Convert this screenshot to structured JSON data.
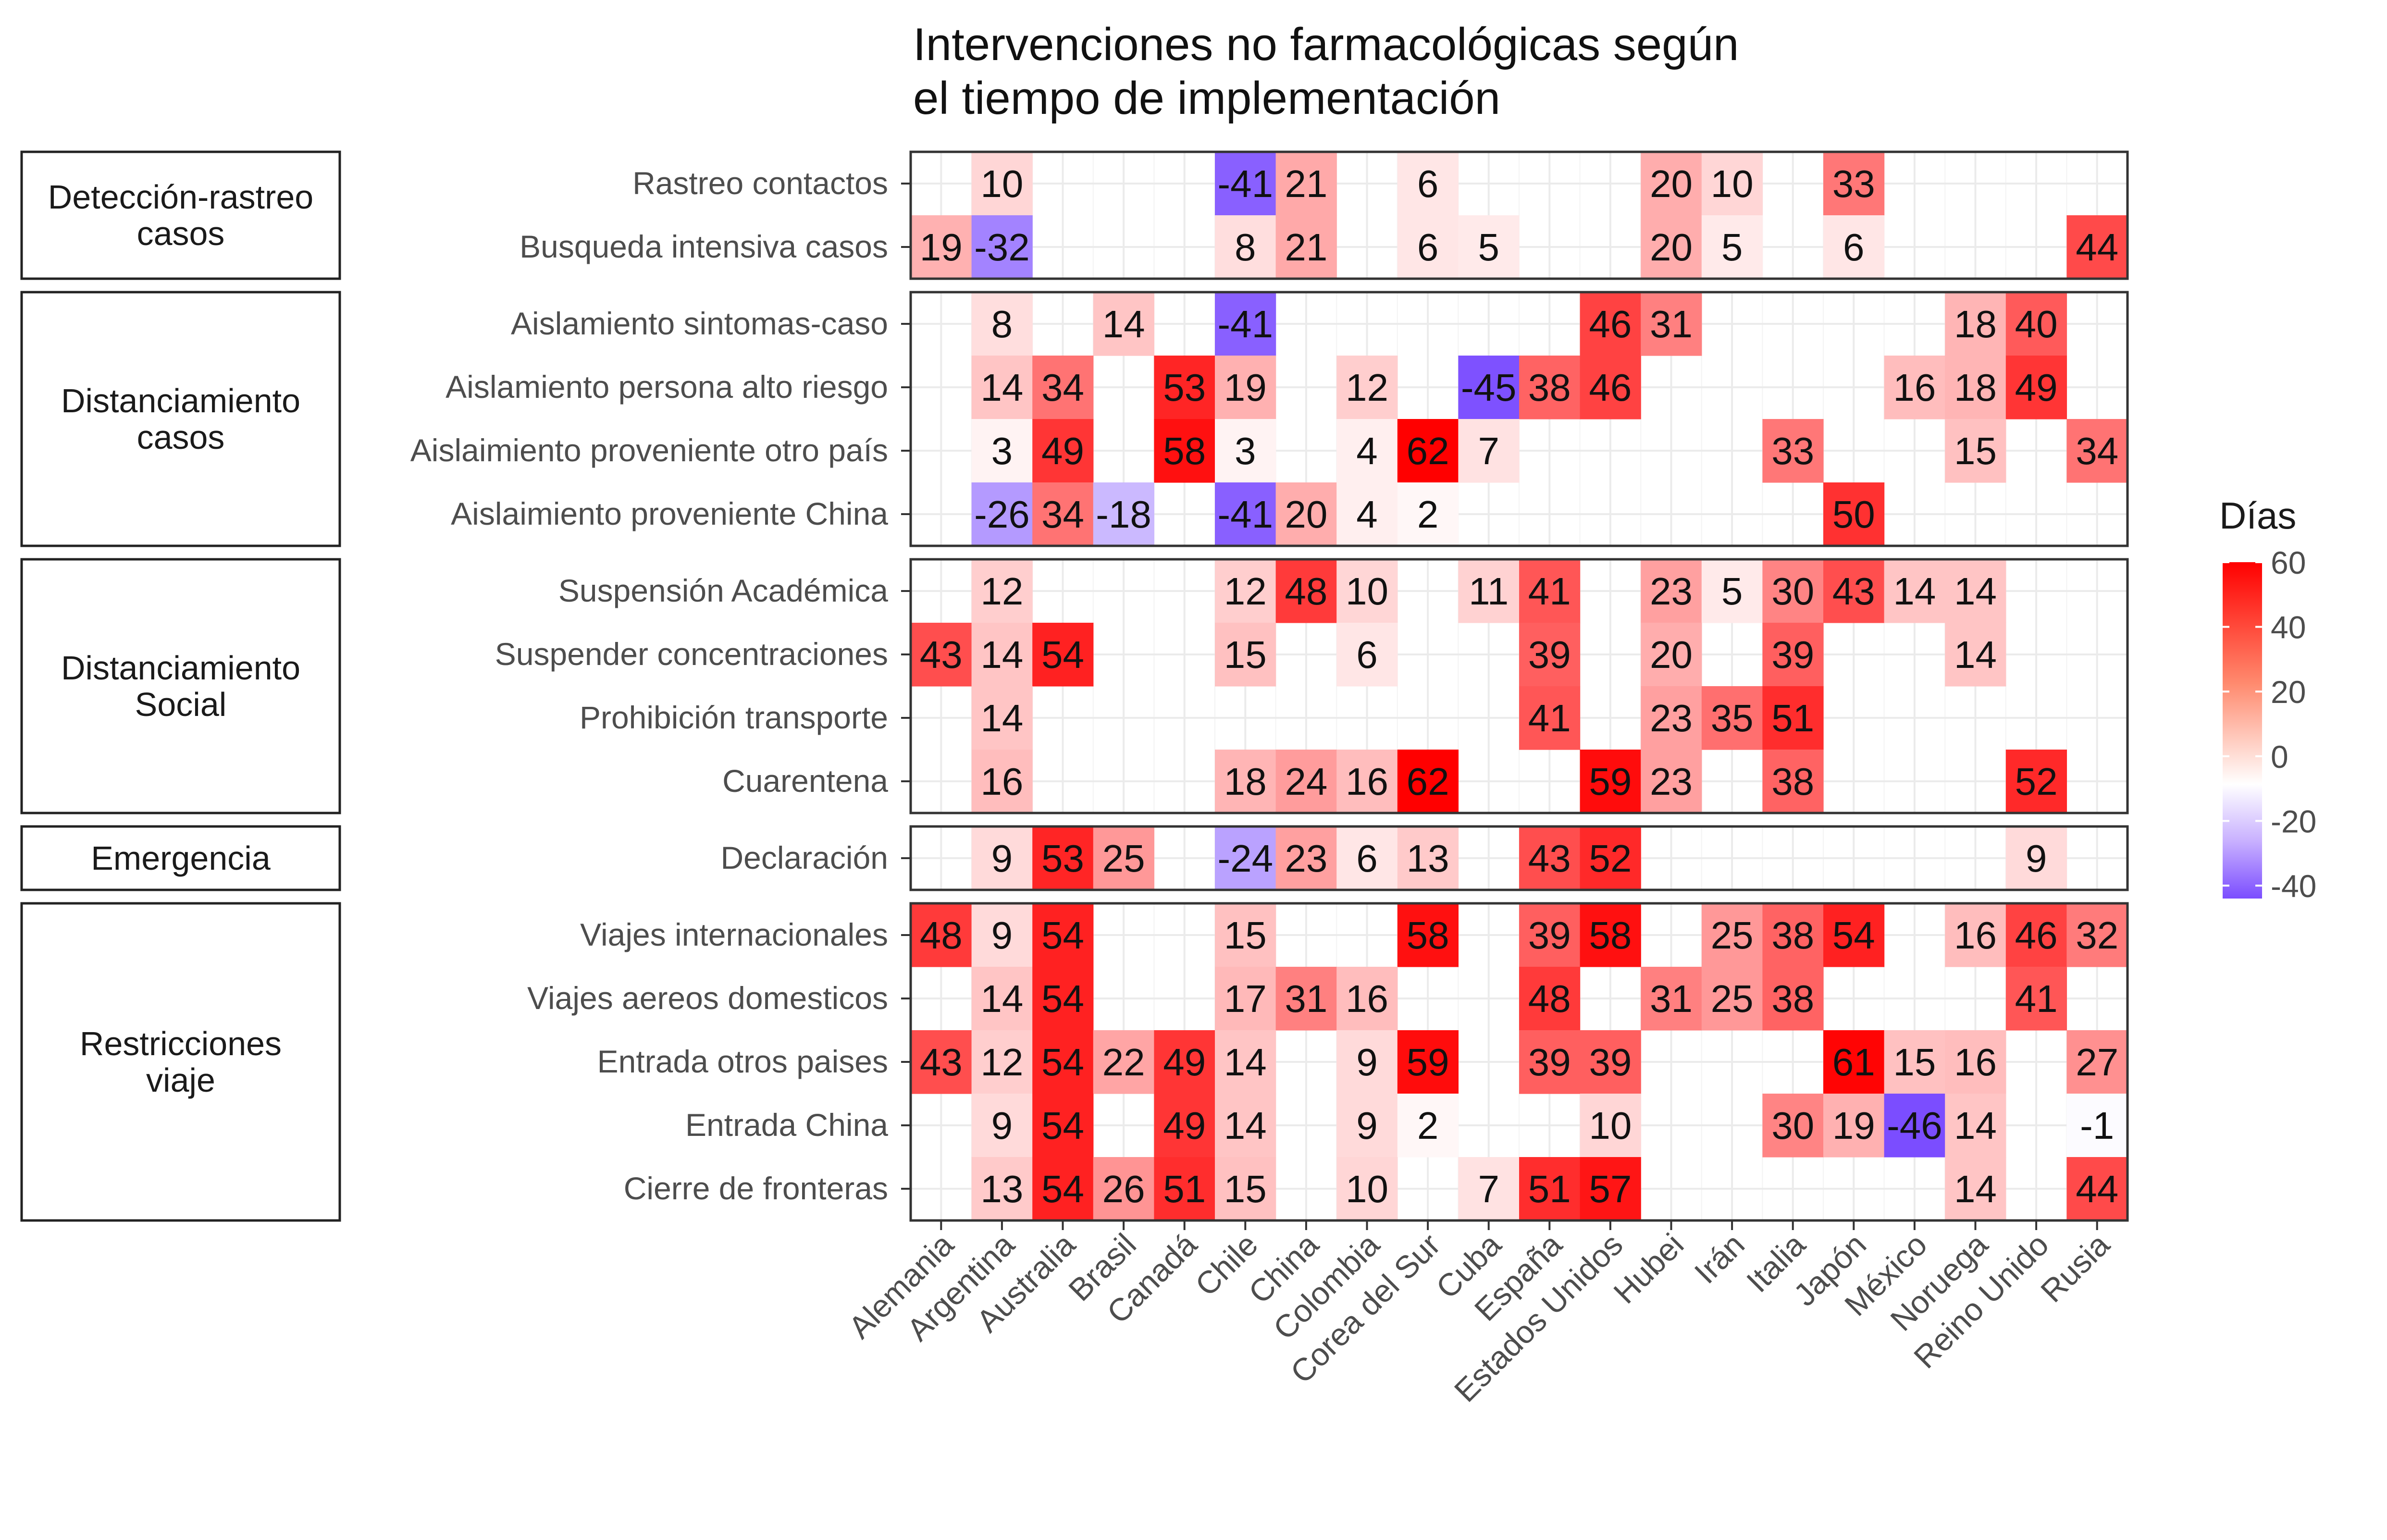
{
  "chart_data": {
    "type": "heatmap",
    "title": "Intervenciones no farmacológicas según\nel tiempo de implementación",
    "xlabel": "",
    "ylabel": "",
    "grid": true,
    "legend": {
      "title": "Días",
      "placement": "right",
      "ticks": [
        60,
        40,
        20,
        0,
        -20,
        -40
      ],
      "range": [
        -46,
        62
      ],
      "colors": {
        "low": "#7b4dff",
        "mid": "#ffffff",
        "high": "#ff0000"
      }
    },
    "columns": [
      "Alemania",
      "Argentina",
      "Australia",
      "Brasil",
      "Canadá",
      "Chile",
      "China",
      "Colombia",
      "Corea del Sur",
      "Cuba",
      "España",
      "Estados Unidos",
      "Hubei",
      "Irán",
      "Italia",
      "Japón",
      "México",
      "Noruega",
      "Reino Unido",
      "Rusia"
    ],
    "groups": [
      {
        "label": "Detección-rastreo\ncasos",
        "rows": [
          {
            "label": "Rastreo contactos",
            "values": [
              null,
              10,
              null,
              null,
              null,
              -41,
              21,
              null,
              6,
              null,
              null,
              null,
              20,
              10,
              null,
              33,
              null,
              null,
              null,
              null
            ]
          },
          {
            "label": "Busqueda intensiva casos",
            "values": [
              19,
              -32,
              null,
              null,
              null,
              8,
              21,
              null,
              6,
              5,
              null,
              null,
              20,
              5,
              null,
              6,
              null,
              null,
              null,
              44
            ]
          }
        ]
      },
      {
        "label": "Distanciamiento\ncasos",
        "rows": [
          {
            "label": "Aislamiento sintomas-caso",
            "values": [
              null,
              8,
              null,
              14,
              null,
              -41,
              null,
              null,
              null,
              null,
              null,
              46,
              31,
              null,
              null,
              null,
              null,
              18,
              40,
              null
            ]
          },
          {
            "label": "Aislamiento persona alto riesgo",
            "values": [
              null,
              14,
              34,
              null,
              53,
              19,
              null,
              12,
              null,
              -45,
              38,
              46,
              null,
              null,
              null,
              null,
              16,
              18,
              49,
              null
            ]
          },
          {
            "label": "Aislaimiento proveniente otro país",
            "values": [
              null,
              3,
              49,
              null,
              58,
              3,
              null,
              4,
              62,
              7,
              null,
              null,
              null,
              null,
              33,
              null,
              null,
              15,
              null,
              34
            ]
          },
          {
            "label": "Aislaimiento proveniente China",
            "values": [
              null,
              -26,
              34,
              -18,
              null,
              -41,
              20,
              4,
              2,
              null,
              null,
              null,
              null,
              null,
              null,
              50,
              null,
              null,
              null,
              null
            ]
          }
        ]
      },
      {
        "label": "Distanciamiento\nSocial",
        "rows": [
          {
            "label": "Suspensión Académica",
            "values": [
              null,
              12,
              null,
              null,
              null,
              12,
              48,
              10,
              null,
              11,
              41,
              null,
              23,
              5,
              30,
              43,
              14,
              14,
              null,
              null
            ]
          },
          {
            "label": "Suspender concentraciones",
            "values": [
              43,
              14,
              54,
              null,
              null,
              15,
              null,
              6,
              null,
              null,
              39,
              null,
              20,
              null,
              39,
              null,
              null,
              14,
              null,
              null
            ]
          },
          {
            "label": "Prohibición transporte",
            "values": [
              null,
              14,
              null,
              null,
              null,
              null,
              null,
              null,
              null,
              null,
              41,
              null,
              23,
              35,
              51,
              null,
              null,
              null,
              null,
              null
            ]
          },
          {
            "label": "Cuarentena",
            "values": [
              null,
              16,
              null,
              null,
              null,
              18,
              24,
              16,
              62,
              null,
              null,
              59,
              23,
              null,
              38,
              null,
              null,
              null,
              52,
              null
            ]
          }
        ]
      },
      {
        "label": "Emergencia",
        "rows": [
          {
            "label": "Declaración",
            "values": [
              null,
              9,
              53,
              25,
              null,
              -24,
              23,
              6,
              13,
              null,
              43,
              52,
              null,
              null,
              null,
              null,
              null,
              null,
              9,
              null
            ]
          }
        ]
      },
      {
        "label": "Restricciones\nviaje",
        "rows": [
          {
            "label": "Viajes internacionales",
            "values": [
              48,
              9,
              54,
              null,
              null,
              15,
              null,
              null,
              58,
              null,
              39,
              58,
              null,
              25,
              38,
              54,
              null,
              16,
              46,
              32
            ]
          },
          {
            "label": "Viajes aereos domesticos",
            "values": [
              null,
              14,
              54,
              null,
              null,
              17,
              31,
              16,
              null,
              null,
              48,
              null,
              31,
              25,
              38,
              null,
              null,
              null,
              41,
              null
            ]
          },
          {
            "label": "Entrada otros paises",
            "values": [
              43,
              12,
              54,
              22,
              49,
              14,
              null,
              9,
              59,
              null,
              39,
              39,
              null,
              null,
              null,
              61,
              15,
              16,
              null,
              27
            ]
          },
          {
            "label": "Entrada China",
            "values": [
              null,
              9,
              54,
              null,
              49,
              14,
              null,
              9,
              2,
              null,
              null,
              10,
              null,
              null,
              30,
              19,
              -46,
              14,
              null,
              -1
            ]
          },
          {
            "label": "Cierre de fronteras",
            "values": [
              null,
              13,
              54,
              26,
              51,
              15,
              null,
              10,
              null,
              7,
              51,
              57,
              null,
              null,
              null,
              null,
              null,
              14,
              null,
              44
            ]
          }
        ]
      }
    ]
  }
}
